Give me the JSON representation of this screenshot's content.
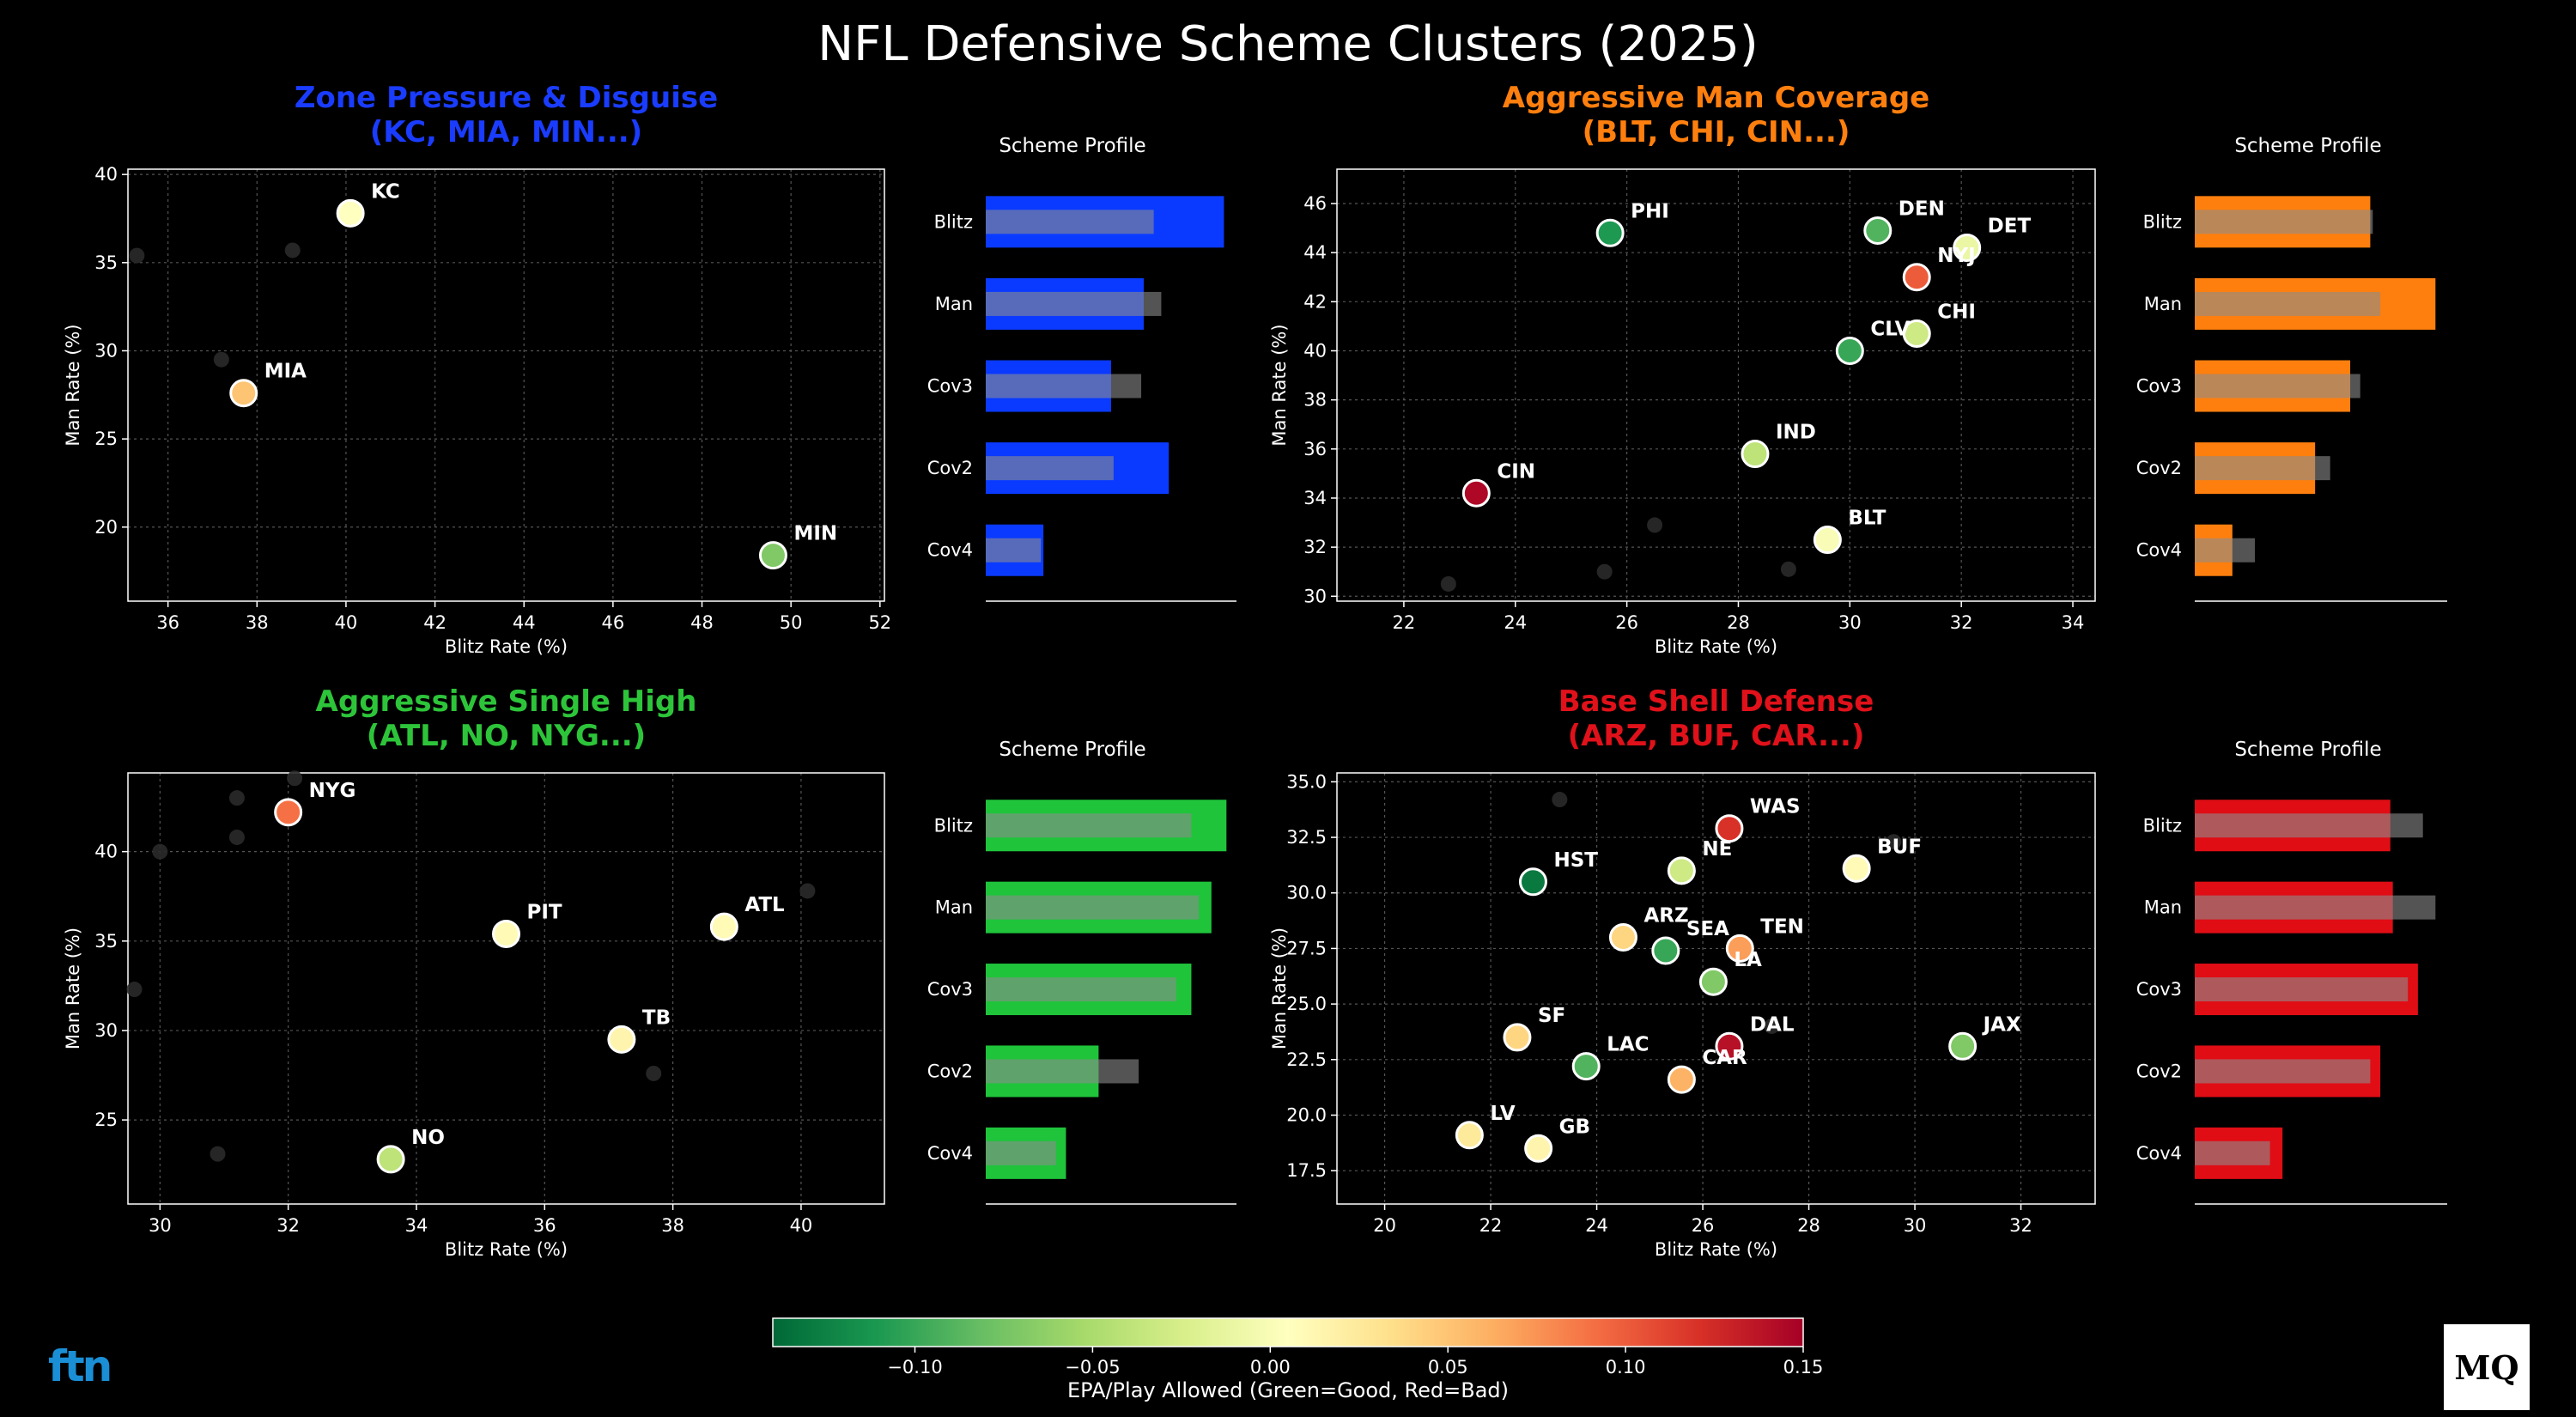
{
  "title": "NFL Defensive Scheme Clusters (2025)",
  "colorbar": {
    "label": "EPA/Play Allowed (Green=Good, Red=Bad)",
    "min": -0.14,
    "max": 0.15,
    "ticks": [
      -0.1,
      -0.05,
      0.0,
      0.05,
      0.1,
      0.15
    ],
    "tick_labels": [
      "−0.10",
      "−0.05",
      "0.00",
      "0.05",
      "0.10",
      "0.15"
    ],
    "colormap": "RdYlGn_r"
  },
  "logos": {
    "left": "ftn",
    "right": "MQ"
  },
  "chart_data": [
    {
      "type": "scatter",
      "title": "Zone Pressure & Disguise\n(KC, MIA, MIN...)",
      "title_color": "#1a3cff",
      "xlabel": "Blitz Rate (%)",
      "ylabel": "Man Rate (%)",
      "xlim": [
        35.1,
        52.1
      ],
      "ylim": [
        15.8,
        40.3
      ],
      "xticks": [
        36,
        38,
        40,
        42,
        44,
        46,
        48,
        50,
        52
      ],
      "yticks": [
        20,
        25,
        30,
        35,
        40
      ],
      "grid": true,
      "points": [
        {
          "team": "KC",
          "x": 40.1,
          "y": 37.8,
          "epa": 0.005
        },
        {
          "team": "MIA",
          "x": 37.7,
          "y": 27.6,
          "epa": 0.05
        },
        {
          "team": "MIN",
          "x": 49.6,
          "y": 18.4,
          "epa": -0.07
        }
      ],
      "background_points": [
        {
          "x": 35.3,
          "y": 35.4
        },
        {
          "x": 38.8,
          "y": 35.7
        },
        {
          "x": 37.2,
          "y": 29.5
        }
      ],
      "profile": {
        "title": "Scheme Profile",
        "color": "#0a3aff",
        "categories": [
          "Blitz",
          "Man",
          "Cov3",
          "Cov2",
          "Cov4"
        ],
        "values": [
          0.95,
          0.63,
          0.5,
          0.73,
          0.23
        ],
        "league_avg": [
          0.67,
          0.7,
          0.62,
          0.51,
          0.22
        ]
      }
    },
    {
      "type": "scatter",
      "title": "Aggressive Man Coverage\n(BLT, CHI, CIN...)",
      "title_color": "#ff7f0e",
      "xlabel": "Blitz Rate (%)",
      "ylabel": "Man Rate (%)",
      "xlim": [
        20.8,
        34.4
      ],
      "ylim": [
        29.8,
        47.4
      ],
      "xticks": [
        22,
        24,
        26,
        28,
        30,
        32,
        34
      ],
      "yticks": [
        30,
        32,
        34,
        36,
        38,
        40,
        42,
        44,
        46
      ],
      "grid": true,
      "points": [
        {
          "team": "PHI",
          "x": 25.7,
          "y": 44.8,
          "epa": -0.11
        },
        {
          "team": "DEN",
          "x": 30.5,
          "y": 44.9,
          "epa": -0.09
        },
        {
          "team": "DET",
          "x": 32.1,
          "y": 44.2,
          "epa": -0.01
        },
        {
          "team": "NYJ",
          "x": 31.2,
          "y": 43.0,
          "epa": 0.1
        },
        {
          "team": "CHI",
          "x": 31.2,
          "y": 40.7,
          "epa": -0.03
        },
        {
          "team": "CLV",
          "x": 30.0,
          "y": 40.0,
          "epa": -0.1
        },
        {
          "team": "IND",
          "x": 28.3,
          "y": 35.8,
          "epa": -0.04
        },
        {
          "team": "CIN",
          "x": 23.3,
          "y": 34.2,
          "epa": 0.145
        },
        {
          "team": "BLT",
          "x": 29.6,
          "y": 32.3,
          "epa": 0.0
        }
      ],
      "background_points": [
        {
          "x": 26.5,
          "y": 32.9
        },
        {
          "x": 25.6,
          "y": 31.0
        },
        {
          "x": 28.9,
          "y": 31.1
        },
        {
          "x": 22.8,
          "y": 30.5
        }
      ],
      "profile": {
        "title": "Scheme Profile",
        "color": "#ff7f0e",
        "categories": [
          "Blitz",
          "Man",
          "Cov3",
          "Cov2",
          "Cov4"
        ],
        "values": [
          0.7,
          0.96,
          0.62,
          0.48,
          0.15
        ],
        "league_avg": [
          0.71,
          0.74,
          0.66,
          0.54,
          0.24
        ]
      }
    },
    {
      "type": "scatter",
      "title": "Aggressive Single High\n(ATL, NO, NYG...)",
      "title_color": "#2dc43a",
      "xlabel": "Blitz Rate (%)",
      "ylabel": "Man Rate (%)",
      "xlim": [
        29.5,
        41.3
      ],
      "ylim": [
        20.3,
        44.4
      ],
      "xticks": [
        30,
        32,
        34,
        36,
        38,
        40
      ],
      "yticks": [
        25,
        30,
        35,
        40
      ],
      "grid": true,
      "points": [
        {
          "team": "NYG",
          "x": 32.0,
          "y": 42.2,
          "epa": 0.09
        },
        {
          "team": "PIT",
          "x": 35.4,
          "y": 35.4,
          "epa": 0.01
        },
        {
          "team": "ATL",
          "x": 38.8,
          "y": 35.8,
          "epa": 0.01
        },
        {
          "team": "TB",
          "x": 37.2,
          "y": 29.5,
          "epa": 0.015
        },
        {
          "team": "NO",
          "x": 33.6,
          "y": 22.8,
          "epa": -0.04
        }
      ],
      "background_points": [
        {
          "x": 31.2,
          "y": 43.0
        },
        {
          "x": 32.1,
          "y": 44.1
        },
        {
          "x": 31.2,
          "y": 40.8
        },
        {
          "x": 30.0,
          "y": 40.0
        },
        {
          "x": 40.1,
          "y": 37.8
        },
        {
          "x": 29.6,
          "y": 32.3
        },
        {
          "x": 37.7,
          "y": 27.6
        },
        {
          "x": 30.9,
          "y": 23.1
        }
      ],
      "profile": {
        "title": "Scheme Profile",
        "color": "#1fc43b",
        "categories": [
          "Blitz",
          "Man",
          "Cov3",
          "Cov2",
          "Cov4"
        ],
        "values": [
          0.96,
          0.9,
          0.82,
          0.45,
          0.32
        ],
        "league_avg": [
          0.82,
          0.85,
          0.76,
          0.61,
          0.28
        ]
      }
    },
    {
      "type": "scatter",
      "title": "Base Shell Defense\n(ARZ, BUF, CAR...)",
      "title_color": "#e0111a",
      "xlabel": "Blitz Rate (%)",
      "ylabel": "Man Rate (%)",
      "xlim": [
        19.1,
        33.4
      ],
      "ylim": [
        16.0,
        35.4
      ],
      "xticks": [
        20,
        22,
        24,
        26,
        28,
        30,
        32
      ],
      "yticks": [
        17.5,
        20.0,
        22.5,
        25.0,
        27.5,
        30.0,
        32.5,
        35.0
      ],
      "ytick_labels": [
        "17.5",
        "20.0",
        "22.5",
        "25.0",
        "27.5",
        "30.0",
        "32.5",
        "35.0"
      ],
      "grid": true,
      "points": [
        {
          "team": "WAS",
          "x": 26.5,
          "y": 32.9,
          "epa": 0.12
        },
        {
          "team": "HST",
          "x": 22.8,
          "y": 30.5,
          "epa": -0.13
        },
        {
          "team": "NE",
          "x": 25.6,
          "y": 31.0,
          "epa": -0.03
        },
        {
          "team": "BUF",
          "x": 28.9,
          "y": 31.1,
          "epa": 0.01
        },
        {
          "team": "ARZ",
          "x": 24.5,
          "y": 28.0,
          "epa": 0.04
        },
        {
          "team": "SEA",
          "x": 25.3,
          "y": 27.4,
          "epa": -0.1
        },
        {
          "team": "TEN",
          "x": 26.7,
          "y": 27.5,
          "epa": 0.07
        },
        {
          "team": "LA",
          "x": 26.2,
          "y": 26.0,
          "epa": -0.07
        },
        {
          "team": "SF",
          "x": 22.5,
          "y": 23.5,
          "epa": 0.04
        },
        {
          "team": "DAL",
          "x": 26.5,
          "y": 23.1,
          "epa": 0.14
        },
        {
          "team": "JAX",
          "x": 30.9,
          "y": 23.1,
          "epa": -0.07
        },
        {
          "team": "LAC",
          "x": 23.8,
          "y": 22.2,
          "epa": -0.09
        },
        {
          "team": "CAR",
          "x": 25.6,
          "y": 21.6,
          "epa": 0.06
        },
        {
          "team": "LV",
          "x": 21.6,
          "y": 19.1,
          "epa": 0.025
        },
        {
          "team": "GB",
          "x": 22.9,
          "y": 18.5,
          "epa": 0.015
        }
      ],
      "background_points": [
        {
          "x": 23.3,
          "y": 34.2
        },
        {
          "x": 29.6,
          "y": 32.3
        },
        {
          "x": 27.3,
          "y": 24.0
        }
      ],
      "profile": {
        "title": "Scheme Profile",
        "color": "#e00d15",
        "categories": [
          "Blitz",
          "Man",
          "Cov3",
          "Cov2",
          "Cov4"
        ],
        "values": [
          0.78,
          0.79,
          0.89,
          0.74,
          0.35
        ],
        "league_avg": [
          0.91,
          0.96,
          0.85,
          0.7,
          0.3
        ]
      }
    }
  ]
}
